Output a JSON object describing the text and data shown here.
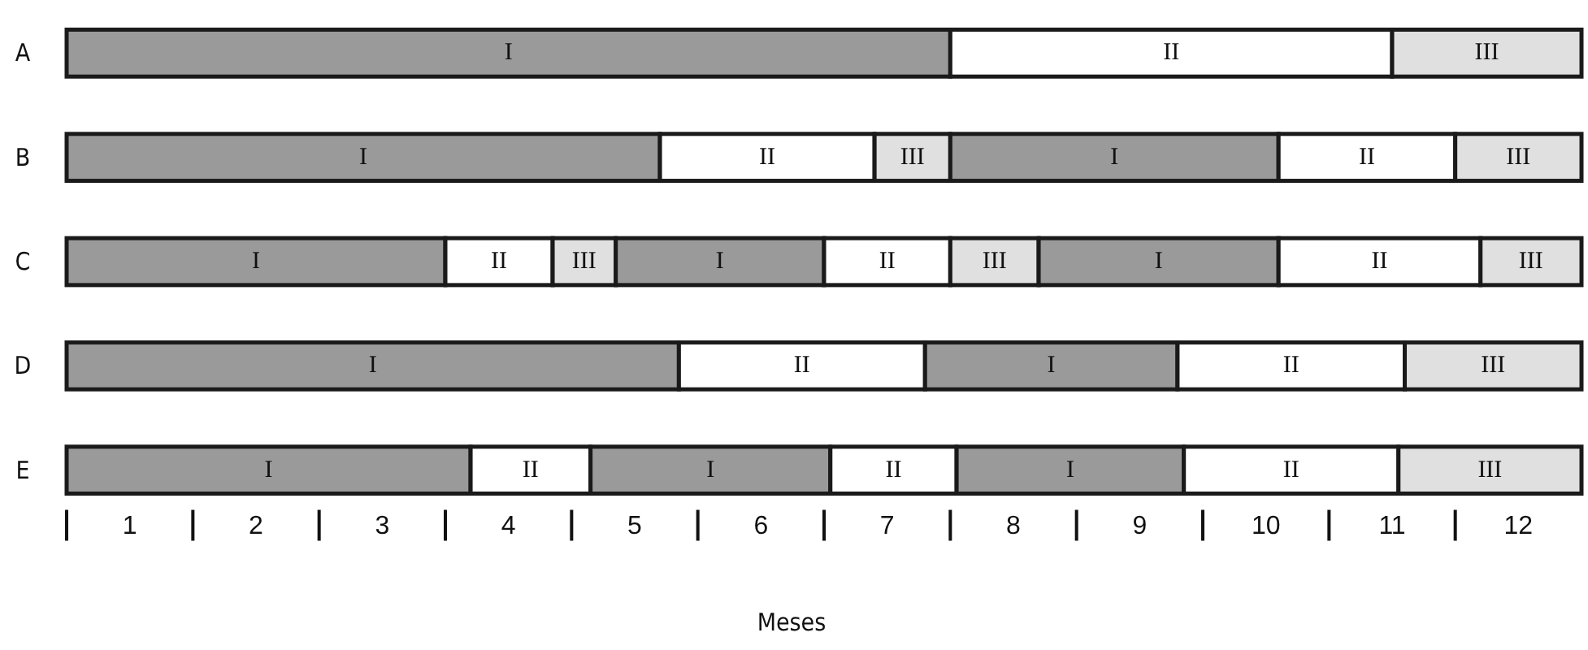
{
  "chart_data": {
    "type": "bar",
    "orientation": "horizontal",
    "stacked": true,
    "xlabel": "Meses",
    "categories": [
      "A",
      "B",
      "C",
      "D",
      "E"
    ],
    "xlim": [
      0,
      12
    ],
    "xticks": [
      {
        "value": 0.5,
        "label": "1"
      },
      {
        "value": 1.5,
        "label": "2"
      },
      {
        "value": 2.5,
        "label": "3"
      },
      {
        "value": 3.5,
        "label": "4"
      },
      {
        "value": 4.5,
        "label": "5"
      },
      {
        "value": 5.5,
        "label": "6"
      },
      {
        "value": 6.5,
        "label": "7"
      },
      {
        "value": 7.5,
        "label": "8"
      },
      {
        "value": 8.5,
        "label": "9"
      },
      {
        "value": 9.5,
        "label": "10"
      },
      {
        "value": 10.5,
        "label": "11"
      },
      {
        "value": 11.5,
        "label": "12"
      }
    ],
    "grid": false,
    "series": [
      {
        "values": [
          7,
          4.7,
          3,
          4.85,
          3.2
        ],
        "colors": [
          "#9a9a9a",
          "#9a9a9a",
          "#9a9a9a",
          "#9a9a9a",
          "#9a9a9a"
        ],
        "value_labels": [
          "I",
          "I",
          "I",
          "I",
          "I"
        ]
      },
      {
        "values": [
          3.5,
          1.7,
          0.85,
          1.95,
          0.95
        ],
        "colors": [
          "#ffffff",
          "#ffffff",
          "#ffffff",
          "#ffffff",
          "#ffffff"
        ],
        "value_labels": [
          "II",
          "II",
          "II",
          "II",
          "II"
        ]
      },
      {
        "values": [
          1.5,
          0.6,
          0.5,
          2,
          1.9
        ],
        "colors": [
          "#e0e0e0",
          "#e0e0e0",
          "#e0e0e0",
          "#9a9a9a",
          "#9a9a9a"
        ],
        "value_labels": [
          "III",
          "III",
          "III",
          "I",
          "I"
        ]
      },
      {
        "values": [
          null,
          2.6,
          1.65,
          1.8,
          1
        ],
        "colors": [
          null,
          "#9a9a9a",
          "#9a9a9a",
          "#ffffff",
          "#ffffff"
        ],
        "value_labels": [
          null,
          "I",
          "I",
          "II",
          "II"
        ]
      },
      {
        "values": [
          null,
          1.4,
          1,
          1.4,
          1.8
        ],
        "colors": [
          null,
          "#ffffff",
          "#ffffff",
          "#e0e0e0",
          "#9a9a9a"
        ],
        "value_labels": [
          null,
          "II",
          "II",
          "III",
          "I"
        ]
      },
      {
        "values": [
          null,
          1,
          0.7,
          null,
          1.7
        ],
        "colors": [
          null,
          "#e0e0e0",
          "#e0e0e0",
          null,
          "#ffffff"
        ],
        "value_labels": [
          null,
          "III",
          "III",
          null,
          "II"
        ]
      },
      {
        "values": [
          null,
          null,
          1.9,
          null,
          1.45
        ],
        "colors": [
          null,
          null,
          "#9a9a9a",
          null,
          "#e0e0e0"
        ],
        "value_labels": [
          null,
          null,
          "I",
          null,
          "III"
        ]
      },
      {
        "values": [
          null,
          null,
          1.6,
          null,
          null
        ],
        "colors": [
          null,
          null,
          "#ffffff",
          null,
          null
        ],
        "value_labels": [
          null,
          null,
          "II",
          null,
          null
        ]
      },
      {
        "values": [
          null,
          null,
          0.8,
          null,
          null
        ],
        "colors": [
          null,
          null,
          "#e0e0e0",
          null,
          null
        ],
        "value_labels": [
          null,
          null,
          "III",
          null,
          null
        ]
      }
    ]
  }
}
